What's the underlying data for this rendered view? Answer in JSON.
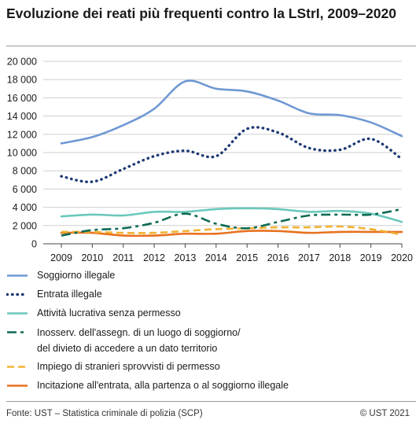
{
  "title": "Evoluzione dei reati più frequenti contro la LStrI, 2009–2020",
  "footer": {
    "source": "Fonte: UST – Statistica criminale di polizia (SCP)",
    "copyright": "© UST 2021"
  },
  "chart_data": {
    "type": "line",
    "title": "Evoluzione dei reati più frequenti contro la LStrI, 2009–2020",
    "xlabel": "",
    "ylabel": "",
    "x": [
      "2009",
      "2010",
      "2011",
      "2012",
      "2013",
      "2014",
      "2015",
      "2016",
      "2017",
      "2018",
      "2019",
      "2020"
    ],
    "ylim": [
      0,
      20000
    ],
    "yticks": [
      0,
      2000,
      4000,
      6000,
      8000,
      10000,
      12000,
      14000,
      16000,
      18000,
      20000
    ],
    "ytick_labels": [
      "0",
      "2 000",
      "4 000",
      "6 000",
      "8 000",
      "10 000",
      "12 000",
      "14 000",
      "16 000",
      "18 000",
      "20 000"
    ],
    "grid": "horizontal",
    "legend_position": "bottom",
    "series": [
      {
        "name": "Soggiorno illegale",
        "color": "#6f98d4",
        "dash": "solid",
        "values": [
          11000,
          11700,
          13000,
          14800,
          17800,
          17000,
          16700,
          15700,
          14300,
          14100,
          13300,
          11800
        ]
      },
      {
        "name": "Entrata illegale",
        "color": "#1e3a75",
        "dash": "dotted",
        "values": [
          7400,
          6800,
          8200,
          9600,
          10200,
          9600,
          12600,
          12200,
          10500,
          10300,
          11500,
          9300
        ]
      },
      {
        "name": "Attività lucrativa senza permesso",
        "color": "#6cc8bb",
        "dash": "solid",
        "values": [
          3000,
          3200,
          3100,
          3500,
          3500,
          3800,
          3900,
          3800,
          3500,
          3600,
          3300,
          2400
        ]
      },
      {
        "name": "Inosserv. dell'assegn. di un luogo di soggiorno/ del divieto di accedere a un dato territorio",
        "label_lines": [
          "Inosserv. dell'assegn. di un luogo di soggiorno/",
          "del divieto di accedere a un dato territorio"
        ],
        "color": "#0e6b55",
        "dash": "dashdot",
        "values": [
          900,
          1500,
          1700,
          2300,
          3300,
          2200,
          1700,
          2400,
          3100,
          3200,
          3200,
          3800
        ]
      },
      {
        "name": "Impiego di stranieri sprovvisti di permesso",
        "color": "#f2b233",
        "dash": "dashed",
        "values": [
          1300,
          1300,
          1200,
          1200,
          1400,
          1600,
          1700,
          1800,
          1800,
          1900,
          1600,
          1000
        ]
      },
      {
        "name": "Incitazione all'entrata, alla partenza o al soggiorno illegale",
        "color": "#e8711f",
        "dash": "solid",
        "values": [
          1200,
          1200,
          900,
          900,
          1100,
          1100,
          1400,
          1400,
          1200,
          1300,
          1300,
          1300
        ]
      }
    ]
  }
}
